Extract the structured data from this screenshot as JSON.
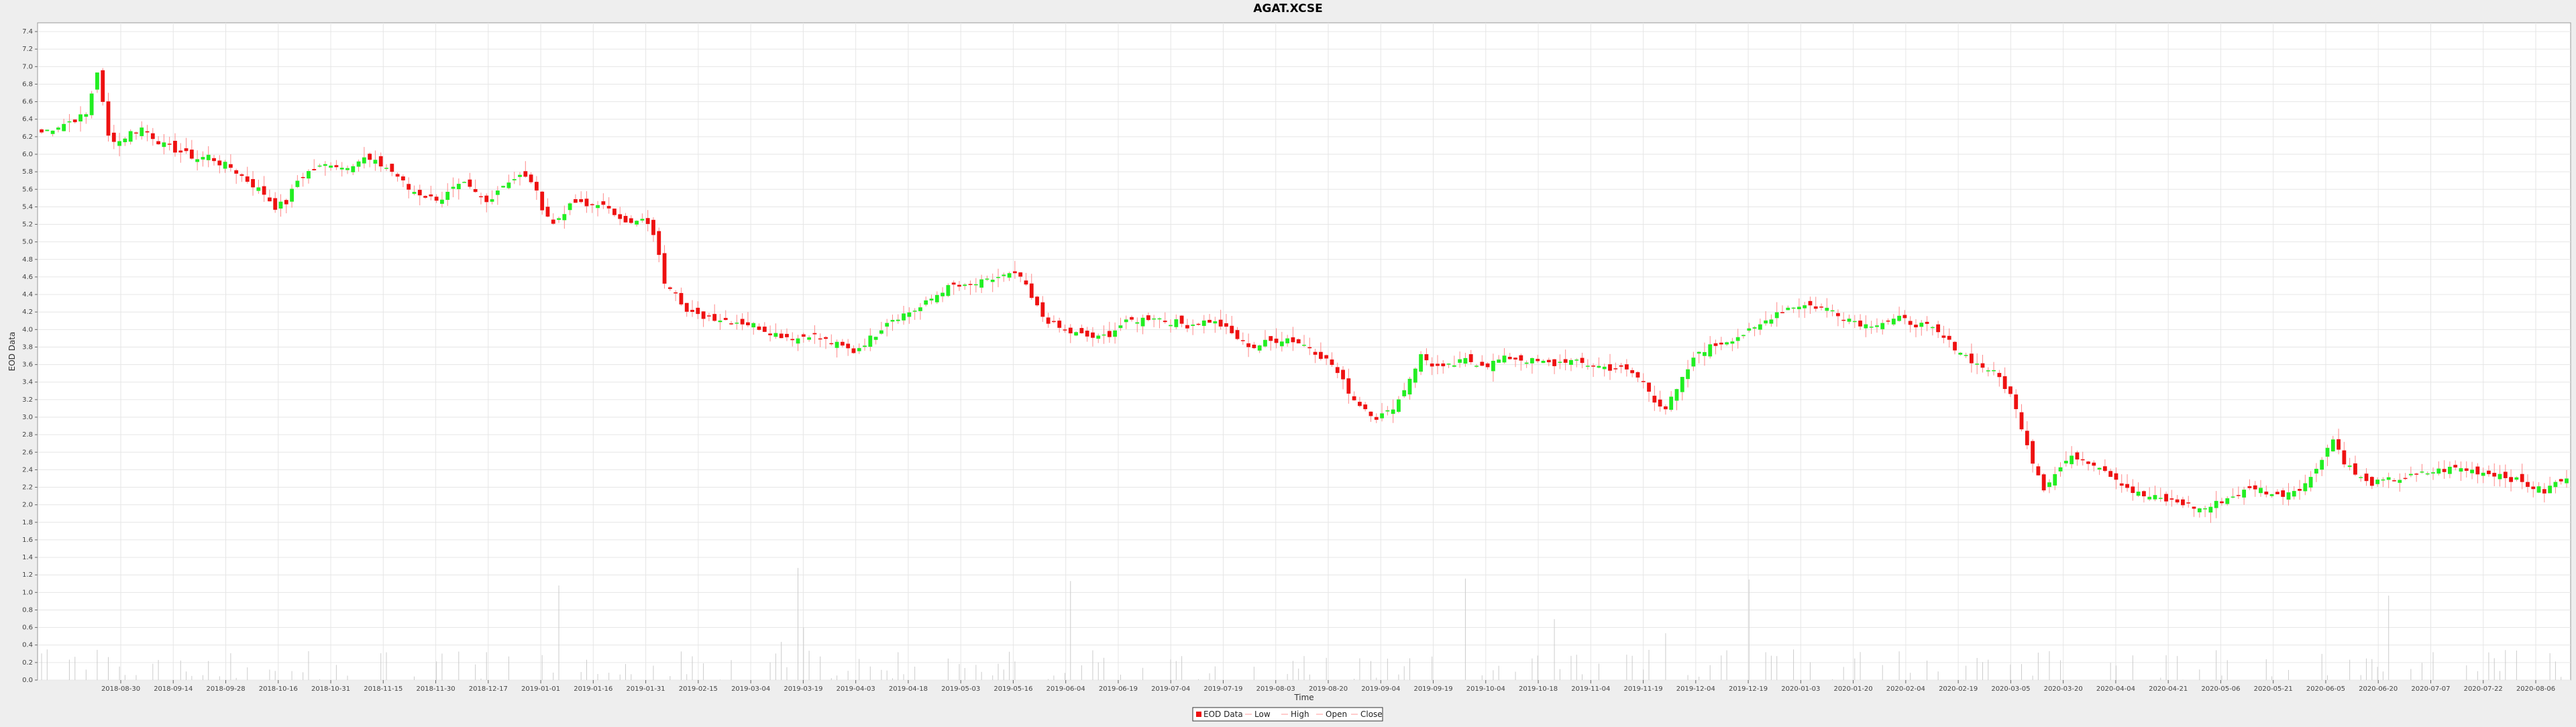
{
  "chart_data": {
    "type": "candlestick",
    "title": "AGAT.XCSE",
    "xlabel": "Time",
    "ylabel": "EOD Data",
    "ylim": [
      0,
      7.5
    ],
    "yticks": [
      "0.0",
      "0.2",
      "0.4",
      "0.6",
      "0.8",
      "1.0",
      "1.2",
      "1.4",
      "1.6",
      "1.8",
      "2.0",
      "2.2",
      "2.4",
      "2.6",
      "2.8",
      "3.0",
      "3.2",
      "3.4",
      "3.6",
      "3.8",
      "4.0",
      "4.2",
      "4.4",
      "4.6",
      "4.8",
      "5.0",
      "5.2",
      "5.4",
      "5.6",
      "5.8",
      "6.0",
      "6.2",
      "6.4",
      "6.6",
      "6.8",
      "7.0",
      "7.2",
      "7.4"
    ],
    "x_tick_labels": [
      "2018-08-30",
      "2018-09-14",
      "2018-09-28",
      "2018-10-16",
      "2018-10-31",
      "2018-11-15",
      "2018-11-30",
      "2018-12-17",
      "2019-01-01",
      "2019-01-16",
      "2019-01-31",
      "2019-02-15",
      "2019-03-04",
      "2019-03-19",
      "2019-04-03",
      "2019-04-18",
      "2019-05-03",
      "2019-05-16",
      "2019-06-04",
      "2019-06-19",
      "2019-07-04",
      "2019-07-19",
      "2019-08-03",
      "2019-08-20",
      "2019-09-04",
      "2019-09-19",
      "2019-10-04",
      "2019-10-18",
      "2019-11-04",
      "2019-11-19",
      "2019-12-04",
      "2019-12-19",
      "2020-01-03",
      "2020-01-20",
      "2020-02-04",
      "2020-02-19",
      "2020-03-05",
      "2020-03-20",
      "2020-04-04",
      "2020-04-21",
      "2020-05-06",
      "2020-05-21",
      "2020-06-05",
      "2020-06-20",
      "2020-07-07",
      "2020-07-22",
      "2020-08-06"
    ],
    "grid": true,
    "legend_position": "bottom-center",
    "legend": [
      "EOD Data",
      "Low",
      "High",
      "Open",
      "Close"
    ],
    "colors": {
      "up": "#22ee22",
      "down": "#ee1111",
      "wick": "#ff8888",
      "volume": "#cccccc",
      "plot_bg": "#ffffff",
      "grid": "#e6e6e6",
      "page_bg": "#eeeeee"
    },
    "close_series": [
      6.25,
      6.3,
      6.35,
      6.4,
      6.45,
      6.95,
      6.2,
      6.15,
      6.25,
      6.3,
      6.2,
      6.1,
      6.05,
      6.0,
      5.95,
      5.98,
      5.9,
      5.85,
      5.75,
      5.65,
      5.55,
      5.4,
      5.45,
      5.7,
      5.8,
      5.85,
      5.9,
      5.85,
      5.9,
      5.95,
      5.9,
      5.85,
      5.75,
      5.6,
      5.55,
      5.5,
      5.5,
      5.6,
      5.65,
      5.55,
      5.45,
      5.6,
      5.7,
      5.75,
      5.7,
      5.4,
      5.2,
      5.35,
      5.45,
      5.4,
      5.45,
      5.35,
      5.3,
      5.2,
      5.25,
      5.1,
      4.55,
      4.45,
      4.2,
      4.15,
      4.15,
      4.12,
      4.1,
      4.08,
      4.05,
      4.0,
      3.95,
      3.92,
      3.9,
      3.95,
      3.9,
      3.85,
      3.8,
      3.75,
      3.85,
      3.95,
      4.1,
      4.15,
      4.2,
      4.25,
      4.35,
      4.45,
      4.5,
      4.48,
      4.52,
      4.55,
      4.6,
      4.62,
      4.6,
      4.35,
      4.15,
      4.05,
      3.98,
      3.95,
      3.92,
      3.9,
      3.95,
      4.05,
      4.1,
      4.12,
      4.15,
      4.1,
      4.08,
      4.05,
      4.08,
      4.1,
      4.05,
      3.95,
      3.85,
      3.8,
      3.85,
      3.88,
      3.9,
      3.85,
      3.8,
      3.7,
      3.6,
      3.4,
      3.2,
      3.1,
      3.0,
      3.05,
      3.2,
      3.45,
      3.7,
      3.6,
      3.55,
      3.6,
      3.65,
      3.62,
      3.6,
      3.65,
      3.68,
      3.66,
      3.64,
      3.62,
      3.6,
      3.65,
      3.62,
      3.6,
      3.58,
      3.56,
      3.55,
      3.5,
      3.4,
      3.2,
      3.1,
      3.3,
      3.55,
      3.75,
      3.8,
      3.85,
      3.9,
      3.95,
      4.0,
      4.1,
      4.2,
      4.25,
      4.28,
      4.27,
      4.25,
      4.22,
      4.15,
      4.1,
      4.05,
      4.08,
      4.1,
      4.12,
      4.08,
      4.05,
      4.0,
      3.9,
      3.8,
      3.7,
      3.6,
      3.55,
      3.45,
      3.25,
      2.9,
      2.5,
      2.2,
      2.35,
      2.5,
      2.55,
      2.5,
      2.45,
      2.35,
      2.25,
      2.15,
      2.1,
      2.08,
      2.05,
      2.03,
      2.0,
      1.95,
      1.98,
      2.05,
      2.1,
      2.15,
      2.2,
      2.15,
      2.1,
      2.15,
      2.2,
      2.3,
      2.55,
      2.75,
      2.5,
      2.35,
      2.25,
      2.25,
      2.28,
      2.3,
      2.32,
      2.35,
      2.38,
      2.4,
      2.42,
      2.4,
      2.38,
      2.36,
      2.35,
      2.3,
      2.25,
      2.2,
      2.15,
      2.25,
      2.3
    ]
  }
}
